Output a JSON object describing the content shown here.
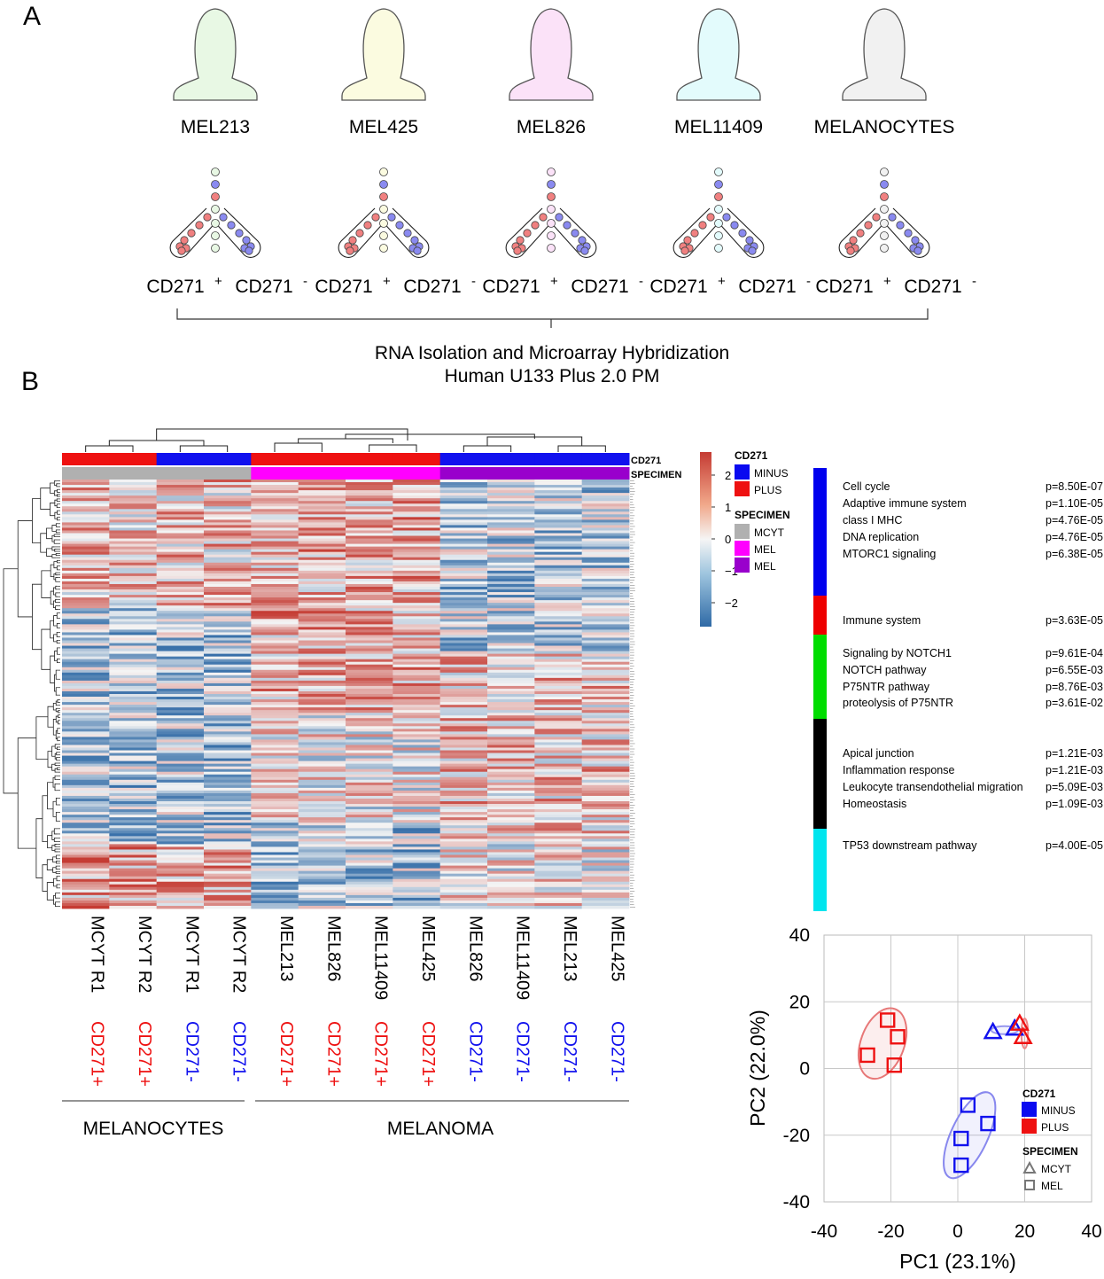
{
  "panel_labels": {
    "a": "A",
    "b": "B"
  },
  "samples": [
    {
      "name": "MEL213",
      "fill": "#e8f8e4"
    },
    {
      "name": "MEL425",
      "fill": "#fbfbe0"
    },
    {
      "name": "MEL826",
      "fill": "#fbe2f8"
    },
    {
      "name": "MEL11409",
      "fill": "#e3fbfc"
    },
    {
      "name": "MELANOCYTES",
      "fill": "#f1f1f1"
    }
  ],
  "split": {
    "plus": "CD271",
    "plus_sup": "+",
    "minus": "CD271",
    "minus_sup": "-"
  },
  "workflow": {
    "line1": "RNA Isolation and Microarray Hybridization",
    "line2": "Human U133 Plus 2.0 PM"
  },
  "heatmap": {
    "annotation_labels": {
      "cd271": "CD271",
      "specimen": "SPECIMEN"
    },
    "columns": [
      {
        "name": "MCYT R1",
        "cd": "CD271+",
        "group": "plus",
        "spec": "mcyt"
      },
      {
        "name": "MCYT R2",
        "cd": "CD271+",
        "group": "plus",
        "spec": "mcyt"
      },
      {
        "name": "MCYT R1",
        "cd": "CD271-",
        "group": "minus",
        "spec": "mcyt"
      },
      {
        "name": "MCYT R2",
        "cd": "CD271-",
        "group": "minus",
        "spec": "mcyt"
      },
      {
        "name": "MEL213",
        "cd": "CD271+",
        "group": "plus",
        "spec": "mel"
      },
      {
        "name": "MEL826",
        "cd": "CD271+",
        "group": "plus",
        "spec": "mel"
      },
      {
        "name": "MEL11409",
        "cd": "CD271+",
        "group": "plus",
        "spec": "mel"
      },
      {
        "name": "MEL425",
        "cd": "CD271+",
        "group": "plus",
        "spec": "mel"
      },
      {
        "name": "MEL826",
        "cd": "CD271-",
        "group": "minus",
        "spec": "mel2"
      },
      {
        "name": "MEL11409",
        "cd": "CD271-",
        "group": "minus",
        "spec": "mel2"
      },
      {
        "name": "MEL213",
        "cd": "CD271-",
        "group": "minus",
        "spec": "mel2"
      },
      {
        "name": "MEL425",
        "cd": "CD271-",
        "group": "minus",
        "spec": "mel2"
      }
    ],
    "groups": {
      "left": "MELANOCYTES",
      "right": "MELANOMA"
    },
    "colorbar": {
      "ticks": [
        2,
        1,
        0,
        -1,
        -2
      ],
      "tick_labels": [
        "2",
        "1",
        "0",
        "−1",
        "−2"
      ],
      "low": "#2f6aa6",
      "mid": "#f5f5f5",
      "high": "#c53b33"
    },
    "legend": {
      "cd271_title": "CD271",
      "cd271_items": [
        {
          "label": "MINUS",
          "color": "#0a0af0"
        },
        {
          "label": "PLUS",
          "color": "#ee1111"
        }
      ],
      "specimen_title": "SPECIMEN",
      "specimen_items": [
        {
          "label": "MCYT",
          "color": "#b0b0b0"
        },
        {
          "label": "MEL",
          "color": "#ff00ff"
        },
        {
          "label": "MEL",
          "color": "#9900cc"
        }
      ]
    }
  },
  "pathways": {
    "clusters": [
      {
        "color": "#0000ee",
        "items": [
          {
            "name": "Cell cycle",
            "p": "p=8.50E-07"
          },
          {
            "name": "Adaptive immune system",
            "p": "p=1.10E-05"
          },
          {
            "name": "class I MHC",
            "p": "p=4.76E-05"
          },
          {
            "name": "DNA replication",
            "p": "p=4.76E-05"
          },
          {
            "name": "MTORC1 signaling",
            "p": "p=6.38E-05"
          }
        ]
      },
      {
        "color": "#ee0000",
        "items": [
          {
            "name": "Immune system",
            "p": "p=3.63E-05"
          }
        ]
      },
      {
        "color": "#00dd00",
        "items": [
          {
            "name": "Signaling by NOTCH1",
            "p": "p=9.61E-04"
          },
          {
            "name": "NOTCH pathway",
            "p": "p=6.55E-03"
          },
          {
            "name": "P75NTR pathway",
            "p": "p=8.76E-03"
          },
          {
            "name": "proteolysis of P75NTR",
            "p": "p=3.61E-02"
          }
        ]
      },
      {
        "color": "#000000",
        "items": [
          {
            "name": "Apical junction",
            "p": "p=1.21E-03"
          },
          {
            "name": "Inflammation response",
            "p": "p=1.21E-03"
          },
          {
            "name": "Leukocyte transendothelial migration",
            "p": "p=5.09E-03"
          },
          {
            "name": "Homeostasis",
            "p": "p=1.09E-03"
          }
        ]
      },
      {
        "color": "#00e5ee",
        "items": [
          {
            "name": "TP53 downstream pathway",
            "p": "p=4.00E-05"
          }
        ]
      }
    ]
  },
  "chart_data": {
    "type": "scatter",
    "title": "",
    "xlabel": "PC1 (23.1%)",
    "ylabel": "PC2 (22.0%)",
    "xlim": [
      -40,
      40
    ],
    "ylim": [
      -40,
      40
    ],
    "xticks": [
      -40,
      -20,
      0,
      20,
      40
    ],
    "yticks": [
      40,
      20,
      0,
      -20,
      -40
    ],
    "grid": true,
    "series": [
      {
        "name": "PLUS MEL",
        "color": "#ee1111",
        "marker": "square",
        "points": [
          [
            -21,
            14.5
          ],
          [
            -18,
            9.5
          ],
          [
            -27,
            4
          ],
          [
            -19,
            1
          ]
        ]
      },
      {
        "name": "MINUS MEL",
        "color": "#1111ee",
        "marker": "square",
        "points": [
          [
            3,
            -11
          ],
          [
            9,
            -16.5
          ],
          [
            1,
            -21
          ],
          [
            1,
            -29
          ]
        ]
      },
      {
        "name": "MINUS MCYT",
        "color": "#1111ee",
        "marker": "triangle",
        "points": [
          [
            10.5,
            11
          ],
          [
            17,
            12
          ]
        ]
      },
      {
        "name": "PLUS MCYT",
        "color": "#ee1111",
        "marker": "triangle",
        "points": [
          [
            18.5,
            13.5
          ],
          [
            19.5,
            9.5
          ]
        ]
      }
    ],
    "ellipses": [
      {
        "group": "PLUS MEL",
        "color": "#e77777",
        "center": [
          -22.5,
          7.5
        ],
        "rx": 6.5,
        "ry": 11,
        "angle": 20
      },
      {
        "group": "MINUS MEL",
        "color": "#8888ee",
        "center": [
          3.5,
          -20
        ],
        "rx": 5.5,
        "ry": 14,
        "angle": 25
      },
      {
        "group": "MINUS MCYT",
        "color": "#9999ee",
        "center": [
          14,
          11.5
        ],
        "rx": 4,
        "ry": 1.2,
        "angle": 0
      },
      {
        "group": "PLUS MCYT",
        "color": "#ee8888",
        "center": [
          20,
          10.5
        ],
        "rx": 1,
        "ry": 4.5,
        "angle": 0
      }
    ],
    "legend": {
      "cd271_title": "CD271",
      "cd271_items": [
        {
          "label": "MINUS",
          "color": "#0a0af0"
        },
        {
          "label": "PLUS",
          "color": "#ee1111"
        }
      ],
      "specimen_title": "SPECIMEN",
      "specimen_items": [
        {
          "label": "MCYT",
          "marker": "triangle"
        },
        {
          "label": "MEL",
          "marker": "square"
        }
      ]
    }
  }
}
